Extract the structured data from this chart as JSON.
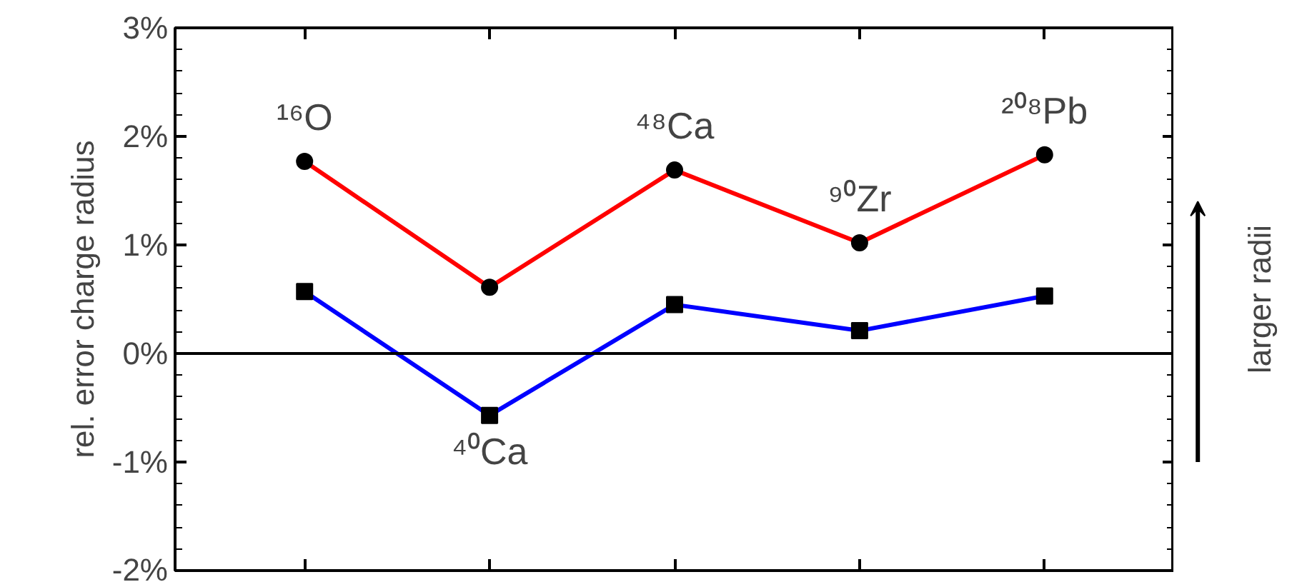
{
  "chart_data": {
    "type": "line",
    "ylabel": "rel. error charge radius",
    "categories": [
      null,
      null,
      null,
      null,
      null
    ],
    "series": [
      {
        "color": "#ff0000",
        "marker": "circle",
        "values": [
          1.77,
          0.61,
          1.69,
          1.02,
          1.83
        ]
      },
      {
        "color": "#0000ff",
        "marker": "square",
        "values": [
          0.57,
          -0.57,
          0.45,
          0.21,
          0.53
        ]
      }
    ],
    "ylim": [
      -2,
      3
    ],
    "yticks": [
      {
        "value": -2,
        "label": "-2%"
      },
      {
        "value": -1,
        "label": "-1%"
      },
      {
        "value": 0,
        "label": "0%"
      },
      {
        "value": 1,
        "label": "1%"
      },
      {
        "value": 2,
        "label": "2%"
      },
      {
        "value": 3,
        "label": "3%"
      }
    ],
    "ref_lines": [
      {
        "axis": "y",
        "value": 0,
        "label": null,
        "color": "#000000"
      }
    ],
    "tick_labels": "y",
    "grid": false,
    "annotations": [
      "¹⁶O",
      "⁴⁰Ca",
      "⁴⁸Ca",
      "⁹⁰Zr",
      "²⁰⁸Pb",
      "larger radii"
    ]
  }
}
